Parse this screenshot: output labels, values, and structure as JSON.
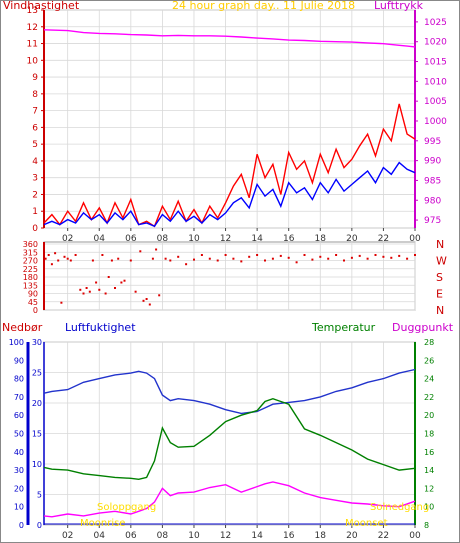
{
  "header": {
    "left_label": "Vindhastighet",
    "title": "24 hour graph day.. 11 Julie 2018",
    "right_label": "Lufttrykk"
  },
  "colors": {
    "wind": "#ff0000",
    "pressure": "#ff00ff",
    "avg_wind": "#0000ff",
    "direction": "#dd0000",
    "rain": "#0000ff",
    "humidity": "#2233cc",
    "temperature": "#008000",
    "dewpoint": "#ff00ff",
    "sun": "#ffdd00",
    "title": "#ffcc00",
    "grid": "#d8d8d8"
  },
  "bottom_header": {
    "rain_label": "Nedbør",
    "humidity_label": "Luftfuktighet",
    "temp_label": "Temperatur",
    "dew_label": "Duggpunkt"
  },
  "annotations": {
    "sunrise": "Soloppgang",
    "sunset": "Solnedgang",
    "moonrise": "Moonrise",
    "moonset": "Moonset"
  },
  "chart_data": [
    {
      "type": "line",
      "title": "24 hour graph day.. 11 Julie 2018",
      "x_ticks": [
        "02",
        "04",
        "06",
        "08",
        "10",
        "12",
        "14",
        "16",
        "18",
        "20",
        "22",
        "00"
      ],
      "x_range_hours": [
        0.5,
        24
      ],
      "left_axis": {
        "label": "Vindhastighet",
        "ticks": [
          0,
          1,
          2,
          3,
          4,
          5,
          6,
          7,
          8,
          9,
          10,
          11,
          12,
          13
        ],
        "ylim": [
          0,
          13
        ]
      },
      "right_axis": {
        "label": "Lufttrykk",
        "ticks": [
          975,
          980,
          985,
          990,
          995,
          1000,
          1005,
          1010,
          1015,
          1020,
          1025
        ],
        "ylim": [
          973,
          1028
        ]
      },
      "series": [
        {
          "axis": "right",
          "color": "pressure",
          "x": [
            0.5,
            2,
            3,
            4,
            5,
            6,
            7,
            8,
            9,
            10,
            11,
            12,
            13,
            14,
            15,
            16,
            17,
            18,
            19,
            20,
            21,
            22,
            23,
            23.5,
            24
          ],
          "values": [
            1023,
            1022.8,
            1022.3,
            1022.1,
            1022.0,
            1021.8,
            1021.7,
            1021.5,
            1021.6,
            1021.5,
            1021.5,
            1021.4,
            1021.2,
            1020.9,
            1020.7,
            1020.4,
            1020.3,
            1020.1,
            1020.0,
            1019.9,
            1019.7,
            1019.5,
            1019.1,
            1018.9,
            1018.7
          ]
        },
        {
          "axis": "left",
          "color": "wind",
          "x": [
            0.5,
            1,
            1.5,
            2,
            2.5,
            3,
            3.5,
            4,
            4.5,
            5,
            5.5,
            6,
            6.5,
            7,
            7.5,
            8,
            8.5,
            9,
            9.5,
            10,
            10.5,
            11,
            11.5,
            12,
            12.5,
            13,
            13.5,
            14,
            14.5,
            15,
            15.5,
            16,
            16.5,
            17,
            17.5,
            18,
            18.5,
            19,
            19.5,
            20,
            20.5,
            21,
            21.5,
            22,
            22.5,
            23,
            23.5,
            24
          ],
          "values": [
            0.3,
            0.8,
            0.2,
            1.0,
            0.4,
            1.5,
            0.5,
            1.2,
            0.3,
            1.5,
            0.6,
            1.7,
            0.2,
            0.4,
            0.1,
            1.3,
            0.5,
            1.6,
            0.4,
            1.1,
            0.3,
            1.3,
            0.6,
            1.5,
            2.5,
            3.2,
            1.8,
            4.4,
            3.0,
            3.8,
            2.0,
            4.5,
            3.5,
            4.0,
            2.7,
            4.4,
            3.3,
            4.7,
            3.6,
            4.1,
            4.9,
            5.6,
            4.3,
            5.9,
            5.2,
            7.4,
            5.6,
            5.3
          ]
        },
        {
          "axis": "left",
          "color": "avg_wind",
          "x": [
            0.5,
            1,
            1.5,
            2,
            2.5,
            3,
            3.5,
            4,
            4.5,
            5,
            5.5,
            6,
            6.5,
            7,
            7.5,
            8,
            8.5,
            9,
            9.5,
            10,
            10.5,
            11,
            11.5,
            12,
            12.5,
            13,
            13.5,
            14,
            14.5,
            15,
            15.5,
            16,
            16.5,
            17,
            17.5,
            18,
            18.5,
            19,
            19.5,
            20,
            20.5,
            21,
            21.5,
            22,
            22.5,
            23,
            23.5,
            24
          ],
          "values": [
            0.2,
            0.4,
            0.2,
            0.5,
            0.3,
            0.9,
            0.5,
            0.8,
            0.3,
            0.9,
            0.5,
            1.0,
            0.2,
            0.3,
            0.1,
            0.8,
            0.4,
            1.0,
            0.4,
            0.7,
            0.3,
            0.8,
            0.5,
            0.9,
            1.5,
            1.8,
            1.2,
            2.6,
            1.9,
            2.3,
            1.3,
            2.7,
            2.1,
            2.4,
            1.7,
            2.7,
            2.1,
            2.9,
            2.2,
            2.6,
            3.0,
            3.4,
            2.7,
            3.6,
            3.2,
            3.9,
            3.5,
            3.3
          ]
        }
      ]
    },
    {
      "type": "scatter",
      "title": "",
      "x_ticks": [
        "02",
        "04",
        "06",
        "08",
        "10",
        "12",
        "14",
        "16",
        "18",
        "20",
        "22",
        "00"
      ],
      "left_axis": {
        "ticks": [
          0,
          45,
          90,
          135,
          180,
          225,
          270,
          315,
          360
        ],
        "ylim": [
          0,
          360
        ]
      },
      "right_axis": {
        "ticks": [
          "N",
          "W",
          "S",
          "E",
          "N"
        ],
        "values": [
          360,
          270,
          180,
          90,
          0
        ]
      },
      "series": [
        {
          "color": "direction",
          "name": "",
          "x": [
            0.6,
            0.8,
            1.0,
            1.2,
            1.4,
            1.6,
            1.8,
            2.0,
            2.2,
            2.5,
            2.8,
            3.0,
            3.2,
            3.4,
            3.6,
            3.8,
            4.0,
            4.2,
            4.4,
            4.6,
            4.8,
            5.0,
            5.2,
            5.4,
            5.6,
            6.0,
            6.3,
            6.6,
            6.8,
            7.0,
            7.2,
            7.4,
            7.6,
            7.8,
            8.2,
            8.5,
            9.0,
            9.5,
            10.0,
            10.5,
            11.0,
            11.5,
            12.0,
            12.5,
            13.0,
            13.5,
            14.0,
            14.5,
            15.0,
            15.5,
            16.0,
            16.5,
            17.0,
            17.5,
            18.0,
            18.5,
            19.0,
            19.5,
            20.0,
            20.5,
            21.0,
            21.5,
            22.0,
            22.5,
            23.0,
            23.5,
            24.0
          ],
          "y": [
            280,
            300,
            250,
            310,
            270,
            40,
            290,
            280,
            270,
            300,
            110,
            90,
            120,
            100,
            270,
            150,
            110,
            300,
            90,
            180,
            270,
            120,
            280,
            150,
            160,
            270,
            100,
            320,
            50,
            60,
            30,
            280,
            330,
            80,
            280,
            270,
            290,
            250,
            275,
            300,
            280,
            270,
            300,
            280,
            265,
            290,
            300,
            270,
            280,
            295,
            285,
            260,
            300,
            275,
            290,
            280,
            300,
            270,
            285,
            295,
            280,
            300,
            290,
            285,
            295,
            280,
            300
          ]
        }
      ]
    },
    {
      "type": "line",
      "title": "",
      "x_ticks": [
        "02",
        "04",
        "06",
        "08",
        "10",
        "12",
        "14",
        "16",
        "18",
        "20",
        "22",
        "00"
      ],
      "x_range_hours": [
        0.5,
        24
      ],
      "axis_rain": {
        "label": "Nedbør",
        "ticks": [
          0,
          10,
          20,
          30,
          40,
          50,
          60,
          70,
          80,
          90,
          100
        ],
        "ylim": [
          0,
          100
        ]
      },
      "axis_humidity_temp": {
        "ticks": [
          0,
          5,
          10,
          15,
          20,
          25,
          30
        ],
        "ylim": [
          0,
          30
        ]
      },
      "axis_right": {
        "label": "Duggpunkt",
        "ticks": [
          8,
          10,
          12,
          14,
          16,
          18,
          20,
          22,
          24,
          26,
          28
        ],
        "ylim": [
          8,
          28
        ]
      },
      "series": [
        {
          "name": "Luftfuktighet",
          "axis": "rain",
          "color": "humidity",
          "x": [
            0.5,
            1,
            2,
            3,
            4,
            5,
            6,
            6.5,
            7,
            7.5,
            8,
            8.5,
            9,
            10,
            11,
            12,
            13,
            14,
            14.5,
            15,
            16,
            17,
            18,
            19,
            20,
            21,
            22,
            23,
            24
          ],
          "values": [
            72,
            73,
            74,
            78,
            80,
            82,
            83,
            84,
            83,
            80,
            71,
            68,
            69,
            68,
            66,
            63,
            61,
            62,
            64,
            66,
            67,
            68,
            70,
            73,
            75,
            78,
            80,
            83,
            85
          ]
        },
        {
          "name": "Temperatur",
          "axis": "right",
          "color": "temperature",
          "x": [
            0.5,
            1,
            2,
            3,
            4,
            5,
            6,
            6.5,
            7,
            7.5,
            8,
            8.5,
            9,
            10,
            11,
            12,
            13,
            14,
            14.5,
            15,
            15.5,
            16,
            17,
            18,
            19,
            20,
            21,
            22,
            23,
            24
          ],
          "values": [
            14.3,
            14.1,
            14.0,
            13.6,
            13.4,
            13.2,
            13.1,
            13.0,
            13.2,
            15.0,
            18.6,
            17.0,
            16.5,
            16.6,
            17.8,
            19.3,
            20.0,
            20.5,
            21.5,
            21.8,
            21.5,
            21.2,
            18.5,
            17.8,
            17.0,
            16.2,
            15.2,
            14.6,
            14.0,
            14.2
          ]
        },
        {
          "name": "Duggpunkt",
          "axis": "right",
          "color": "dewpoint",
          "x": [
            0.5,
            1,
            2,
            3,
            4,
            5,
            6,
            6.5,
            7,
            7.5,
            8,
            8.5,
            9,
            10,
            11,
            12,
            13,
            14,
            14.5,
            15,
            16,
            17,
            18,
            19,
            20,
            21,
            22,
            23,
            24
          ],
          "values": [
            9.0,
            8.9,
            9.2,
            9.0,
            9.3,
            9.5,
            9.2,
            9.5,
            9.8,
            10.5,
            12.0,
            11.2,
            11.5,
            11.6,
            12.1,
            12.4,
            11.6,
            12.2,
            12.5,
            12.7,
            12.3,
            11.5,
            11.0,
            10.7,
            10.4,
            10.3,
            10.1,
            10.0,
            10.6
          ]
        }
      ]
    }
  ]
}
